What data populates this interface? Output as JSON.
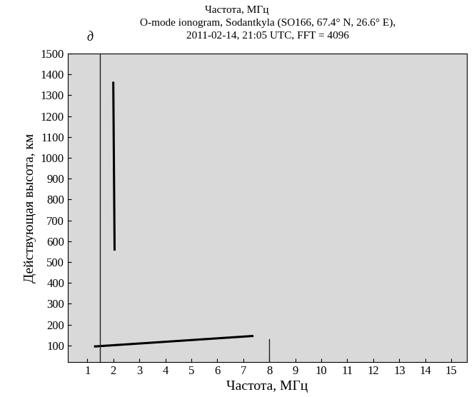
{
  "chart_data": {
    "type": "line",
    "top_text": "Частота, МГц",
    "panel_label": "д",
    "title": "O-mode ionogram, Sodantkyla (SO166, 67.4° N, 26.6° E),\n2011-02-14, 21:05 UTC, FFT = 4096",
    "x_label": "Частота, МГц",
    "y_label": "Действующая высота, км",
    "xlim": [
      0.25,
      15.6
    ],
    "ylim": [
      20,
      1500
    ],
    "xticks": [
      1,
      2,
      3,
      4,
      5,
      6,
      7,
      8,
      9,
      10,
      11,
      12,
      13,
      14,
      15
    ],
    "yticks": [
      100,
      200,
      300,
      400,
      500,
      600,
      700,
      800,
      900,
      1000,
      1100,
      1200,
      1300,
      1400,
      1500
    ],
    "grid": false,
    "series": [
      {
        "x": [
          1.3,
          7.35
        ],
        "values": [
          95,
          145
        ],
        "color": "#000000",
        "line_style": "solid"
      },
      {
        "x": [
          2.05,
          2.0
        ],
        "values": [
          560,
          1360
        ],
        "color": "#000000",
        "line_style": "solid"
      },
      {
        "x": [
          1.5,
          1.5
        ],
        "values": [
          20,
          1500
        ],
        "color": "#222222",
        "line_style": "solid"
      },
      {
        "x": [
          8.0,
          8.0
        ],
        "values": [
          20,
          130
        ],
        "color": "#222222",
        "line_style": "solid"
      }
    ]
  }
}
